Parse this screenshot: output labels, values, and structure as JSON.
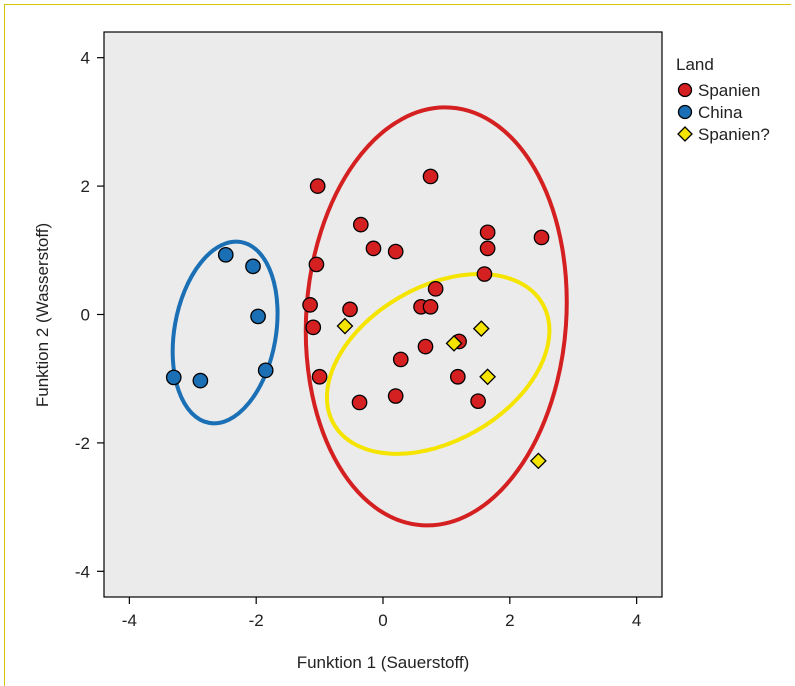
{
  "chart_data": {
    "type": "scatter",
    "xlabel": "Funktion 1 (Sauerstoff)",
    "ylabel": "Funktion 2 (Wasserstoff)",
    "xlim": [
      -4.4,
      4.4
    ],
    "ylim": [
      -4.4,
      4.4
    ],
    "xticks": [
      -4,
      -2,
      0,
      2,
      4
    ],
    "yticks": [
      -4,
      -2,
      0,
      2,
      4
    ],
    "x_tick_labels": [
      "-4",
      "-2",
      "0",
      "2",
      "4"
    ],
    "y_tick_labels": [
      "-4",
      "-2",
      "0",
      "2",
      "4"
    ],
    "grid": false,
    "plot_background": "#ebebeb",
    "legend": {
      "title": "Land",
      "placement": "top-right outside",
      "entries": [
        "Spanien",
        "China",
        "Spanien?"
      ]
    },
    "series": [
      {
        "name": "Spanien",
        "marker": "circle",
        "color": "#d42020",
        "points": [
          [
            -1.03,
            2.0
          ],
          [
            0.75,
            2.15
          ],
          [
            -0.35,
            1.4
          ],
          [
            -0.15,
            1.03
          ],
          [
            0.2,
            0.98
          ],
          [
            1.65,
            1.28
          ],
          [
            1.65,
            1.03
          ],
          [
            2.5,
            1.2
          ],
          [
            -1.05,
            0.78
          ],
          [
            1.6,
            0.63
          ],
          [
            0.83,
            0.4
          ],
          [
            -1.15,
            0.15
          ],
          [
            -0.52,
            0.08
          ],
          [
            0.6,
            0.12
          ],
          [
            0.75,
            0.12
          ],
          [
            -1.1,
            -0.2
          ],
          [
            1.2,
            -0.42
          ],
          [
            0.67,
            -0.5
          ],
          [
            0.28,
            -0.7
          ],
          [
            -1.0,
            -0.97
          ],
          [
            1.18,
            -0.97
          ],
          [
            0.2,
            -1.27
          ],
          [
            -0.37,
            -1.37
          ],
          [
            1.5,
            -1.35
          ]
        ]
      },
      {
        "name": "China",
        "marker": "circle",
        "color": "#1a6fb5",
        "points": [
          [
            -2.48,
            0.93
          ],
          [
            -2.05,
            0.75
          ],
          [
            -1.97,
            -0.03
          ],
          [
            -1.85,
            -0.87
          ],
          [
            -3.3,
            -0.98
          ],
          [
            -2.88,
            -1.03
          ]
        ]
      },
      {
        "name": "Spanien?",
        "marker": "diamond",
        "color": "#f4e400",
        "points": [
          [
            -0.6,
            -0.18
          ],
          [
            1.12,
            -0.45
          ],
          [
            1.55,
            -0.22
          ],
          [
            1.65,
            -0.97
          ],
          [
            2.45,
            -2.28
          ]
        ]
      }
    ],
    "ellipses": [
      {
        "series": "Spanien",
        "color": "#d42020",
        "center": [
          0.84,
          -0.03
        ],
        "rx": 2.05,
        "ry": 3.26,
        "rotation_deg": 4
      },
      {
        "series": "China",
        "color": "#1a6fb5",
        "center": [
          -2.49,
          -0.28
        ],
        "rx": 0.8,
        "ry": 1.43,
        "rotation_deg": 10
      },
      {
        "series": "Spanien?",
        "color": "#f4e400",
        "center": [
          0.87,
          -0.77
        ],
        "rx": 1.9,
        "ry": 1.2,
        "rotation_deg": -30
      }
    ]
  }
}
